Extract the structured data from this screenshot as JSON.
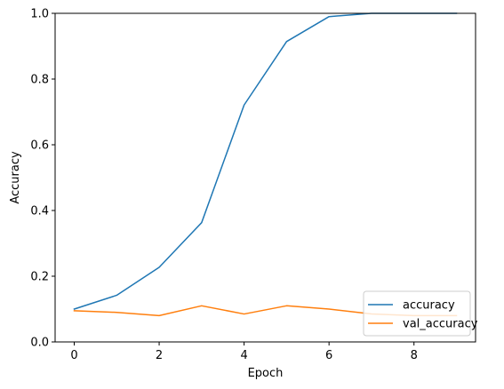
{
  "chart_data": {
    "type": "line",
    "xlabel": "Epoch",
    "ylabel": "Accuracy",
    "xlim": [
      -0.45,
      9.45
    ],
    "ylim": [
      0,
      1
    ],
    "xticks": [
      0,
      2,
      4,
      6,
      8
    ],
    "yticks": [
      0.0,
      0.2,
      0.4,
      0.6,
      0.8,
      1.0
    ],
    "x": [
      0,
      1,
      2,
      3,
      4,
      5,
      6,
      7,
      8,
      9
    ],
    "series": [
      {
        "name": "accuracy",
        "color": "#1f77b4",
        "values": [
          0.1,
          0.142,
          0.227,
          0.363,
          0.721,
          0.914,
          0.99,
          1.0,
          1.0,
          1.0
        ]
      },
      {
        "name": "val_accuracy",
        "color": "#ff7f0e",
        "values": [
          0.095,
          0.09,
          0.08,
          0.11,
          0.085,
          0.11,
          0.1,
          0.085,
          0.08,
          0.08
        ]
      }
    ],
    "legend_position": "lower-right",
    "grid": false
  }
}
